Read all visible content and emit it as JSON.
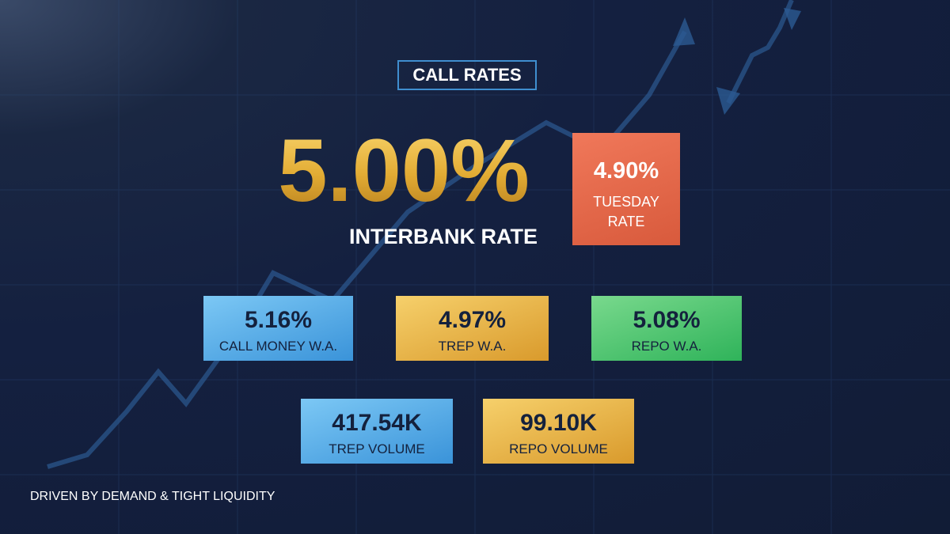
{
  "header": {
    "title": "CALL RATES"
  },
  "main": {
    "value": "5.00%",
    "label": "INTERBANK RATE"
  },
  "side": {
    "value": "4.90%",
    "label": "TUESDAY RATE"
  },
  "cards": [
    {
      "value": "5.16%",
      "label": "CALL MONEY W.A."
    },
    {
      "value": "4.97%",
      "label": "TREP W.A."
    },
    {
      "value": "5.08%",
      "label": "REPO W.A."
    },
    {
      "value": "417.54K",
      "label": "TREP VOLUME"
    },
    {
      "value": "99.10K",
      "label": "REPO VOLUME"
    }
  ],
  "footer": {
    "text": "DRIVEN BY DEMAND & TIGHT LIQUIDITY"
  }
}
